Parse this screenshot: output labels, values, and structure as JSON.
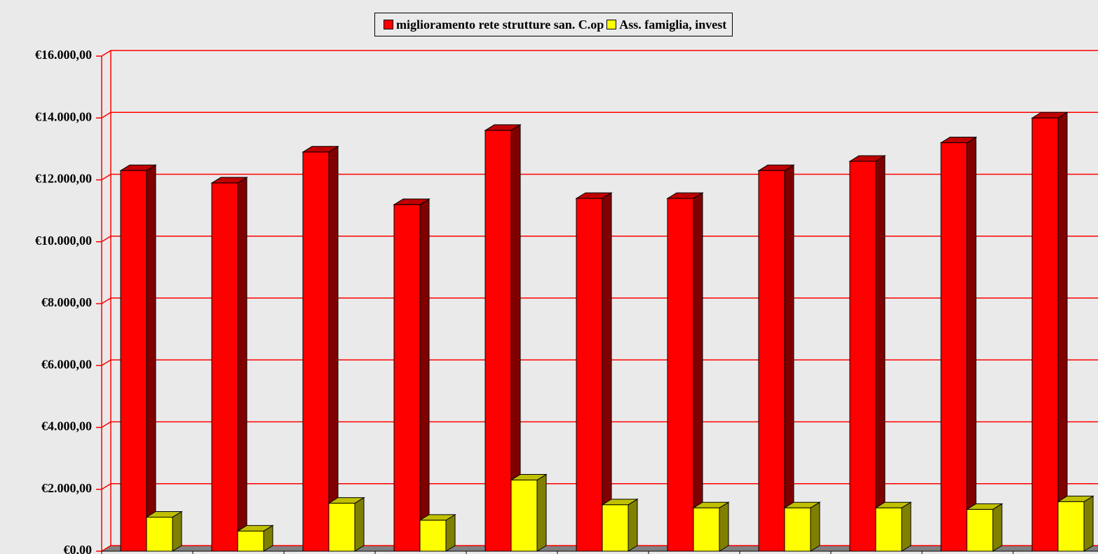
{
  "chart_data": {
    "type": "bar3d",
    "categories": [
      null,
      null,
      null,
      null,
      null,
      null,
      null,
      null,
      null,
      null,
      null
    ],
    "series": [
      {
        "name": "miglioramento rete strutture san. C.op",
        "color": "#ff0000",
        "side": "#800000",
        "top": "#c00000",
        "values": [
          12300,
          11900,
          12900,
          11200,
          13600,
          11400,
          11400,
          12300,
          12600,
          13200,
          14000
        ]
      },
      {
        "name": "Ass. famiglia, invest",
        "color": "#ffff00",
        "side": "#808000",
        "top": "#c0c000",
        "values": [
          1100,
          650,
          1550,
          1000,
          2300,
          1500,
          1400,
          1400,
          1400,
          1350,
          1600
        ]
      }
    ],
    "ylim": [
      0,
      16000
    ],
    "yticks": [
      {
        "value": 0,
        "label": "€0,00"
      },
      {
        "value": 2000,
        "label": "€2.000,00"
      },
      {
        "value": 4000,
        "label": "€4.000,00"
      },
      {
        "value": 6000,
        "label": "€6.000,00"
      },
      {
        "value": 8000,
        "label": "€8.000,00"
      },
      {
        "value": 10000,
        "label": "€10.000,00"
      },
      {
        "value": 12000,
        "label": "€12.000,00"
      },
      {
        "value": 14000,
        "label": "€14.000,00"
      },
      {
        "value": 16000,
        "label": "€16.000,00"
      }
    ],
    "grid": true,
    "grid_color": "#ff0000",
    "legend": "top"
  }
}
